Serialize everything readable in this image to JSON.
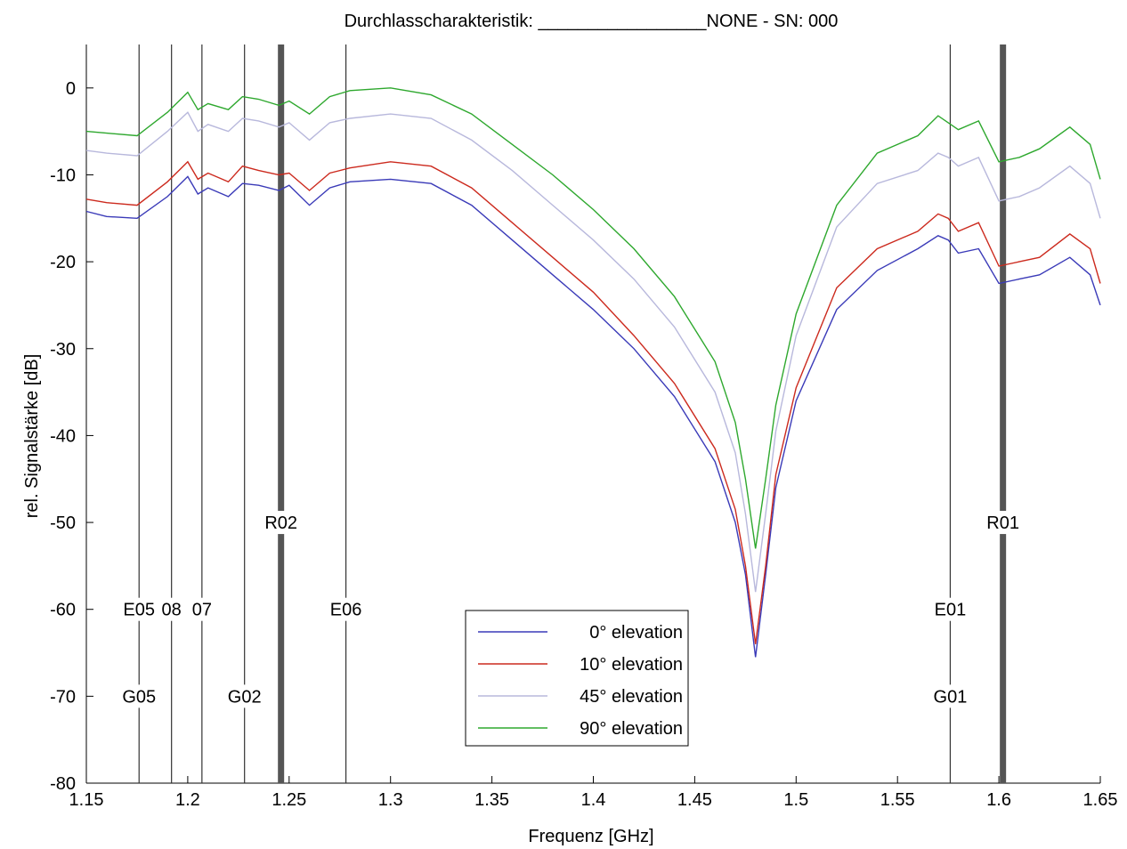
{
  "chart_data": {
    "type": "line",
    "title": "Durchlasscharakteristik: _________________NONE - SN: 000",
    "xlabel": "Frequenz [GHz]",
    "ylabel": "rel. Signalstärke [dB]",
    "xlim": [
      1.15,
      1.65
    ],
    "ylim": [
      -80,
      5
    ],
    "xticks": [
      "1.15",
      "1.2",
      "1.25",
      "1.3",
      "1.35",
      "1.4",
      "1.45",
      "1.5",
      "1.55",
      "1.6",
      "1.65"
    ],
    "yticks": [
      "0",
      "-10",
      "-20",
      "-30",
      "-40",
      "-50",
      "-60",
      "-70",
      "-80"
    ],
    "grid": false,
    "legend_position": "bottom-center",
    "series": [
      {
        "name": "0° elevation",
        "color": "#3a3ab8",
        "x": [
          1.15,
          1.16,
          1.175,
          1.19,
          1.2,
          1.205,
          1.21,
          1.22,
          1.227,
          1.235,
          1.245,
          1.25,
          1.26,
          1.27,
          1.28,
          1.3,
          1.32,
          1.34,
          1.36,
          1.38,
          1.4,
          1.42,
          1.44,
          1.46,
          1.47,
          1.475,
          1.48,
          1.485,
          1.49,
          1.5,
          1.52,
          1.54,
          1.56,
          1.57,
          1.575,
          1.58,
          1.59,
          1.6,
          1.61,
          1.62,
          1.635,
          1.645,
          1.65
        ],
        "values": [
          -14.2,
          -14.8,
          -15.0,
          -12.5,
          -10.2,
          -12.2,
          -11.5,
          -12.5,
          -11.0,
          -11.2,
          -11.8,
          -11.2,
          -13.5,
          -11.5,
          -10.8,
          -10.5,
          -11.0,
          -13.5,
          -17.5,
          -21.5,
          -25.5,
          -30.0,
          -35.5,
          -43.0,
          -50.0,
          -56.0,
          -65.5,
          -56.0,
          -46.0,
          -36.0,
          -25.5,
          -21.0,
          -18.5,
          -17.0,
          -17.5,
          -19.0,
          -18.5,
          -22.5,
          -22.0,
          -21.5,
          -19.5,
          -21.5,
          -25.0
        ]
      },
      {
        "name": "10° elevation",
        "color": "#cc2a1e",
        "x": [
          1.15,
          1.16,
          1.175,
          1.19,
          1.2,
          1.205,
          1.21,
          1.22,
          1.227,
          1.235,
          1.245,
          1.25,
          1.26,
          1.27,
          1.28,
          1.3,
          1.32,
          1.34,
          1.36,
          1.38,
          1.4,
          1.42,
          1.44,
          1.46,
          1.47,
          1.475,
          1.48,
          1.485,
          1.49,
          1.5,
          1.52,
          1.54,
          1.56,
          1.57,
          1.575,
          1.58,
          1.59,
          1.6,
          1.61,
          1.62,
          1.635,
          1.645,
          1.65
        ],
        "values": [
          -12.8,
          -13.2,
          -13.5,
          -10.8,
          -8.5,
          -10.5,
          -9.8,
          -10.8,
          -9.0,
          -9.5,
          -10.0,
          -9.8,
          -11.8,
          -9.8,
          -9.2,
          -8.5,
          -9.0,
          -11.5,
          -15.5,
          -19.5,
          -23.5,
          -28.5,
          -34.0,
          -41.5,
          -48.5,
          -55.0,
          -64.0,
          -55.0,
          -44.5,
          -34.5,
          -23.0,
          -18.5,
          -16.5,
          -14.5,
          -15.0,
          -16.5,
          -15.5,
          -20.5,
          -20.0,
          -19.5,
          -16.8,
          -18.5,
          -22.5
        ]
      },
      {
        "name": "45° elevation",
        "color": "#b8b8dc",
        "x": [
          1.15,
          1.16,
          1.175,
          1.19,
          1.2,
          1.205,
          1.21,
          1.22,
          1.227,
          1.235,
          1.245,
          1.25,
          1.26,
          1.27,
          1.28,
          1.3,
          1.32,
          1.34,
          1.36,
          1.38,
          1.4,
          1.42,
          1.44,
          1.46,
          1.47,
          1.475,
          1.48,
          1.485,
          1.49,
          1.5,
          1.52,
          1.54,
          1.56,
          1.57,
          1.575,
          1.58,
          1.59,
          1.6,
          1.61,
          1.62,
          1.635,
          1.645,
          1.65
        ],
        "values": [
          -7.2,
          -7.5,
          -7.8,
          -5.0,
          -2.8,
          -5.0,
          -4.2,
          -5.0,
          -3.5,
          -3.8,
          -4.5,
          -4.0,
          -6.0,
          -4.0,
          -3.5,
          -3.0,
          -3.5,
          -6.0,
          -9.5,
          -13.5,
          -17.5,
          -22.0,
          -27.5,
          -35.0,
          -42.0,
          -49.0,
          -58.0,
          -49.0,
          -39.5,
          -28.5,
          -16.0,
          -11.0,
          -9.5,
          -7.5,
          -8.0,
          -9.0,
          -8.0,
          -13.0,
          -12.5,
          -11.5,
          -9.0,
          -11.0,
          -15.0
        ]
      },
      {
        "name": "90° elevation",
        "color": "#2ea82e",
        "x": [
          1.15,
          1.16,
          1.175,
          1.19,
          1.2,
          1.205,
          1.21,
          1.22,
          1.227,
          1.235,
          1.245,
          1.25,
          1.26,
          1.27,
          1.28,
          1.3,
          1.32,
          1.34,
          1.36,
          1.38,
          1.4,
          1.42,
          1.44,
          1.46,
          1.47,
          1.475,
          1.48,
          1.485,
          1.49,
          1.5,
          1.52,
          1.54,
          1.56,
          1.57,
          1.575,
          1.58,
          1.59,
          1.6,
          1.61,
          1.62,
          1.635,
          1.645,
          1.65
        ],
        "values": [
          -5.0,
          -5.2,
          -5.5,
          -2.8,
          -0.5,
          -2.5,
          -1.8,
          -2.5,
          -1.0,
          -1.3,
          -2.0,
          -1.5,
          -3.0,
          -1.0,
          -0.3,
          0.0,
          -0.8,
          -3.0,
          -6.5,
          -10.0,
          -14.0,
          -18.5,
          -24.0,
          -31.5,
          -38.5,
          -45.0,
          -53.0,
          -45.0,
          -36.5,
          -26.0,
          -13.5,
          -7.5,
          -5.5,
          -3.2,
          -4.0,
          -4.8,
          -3.8,
          -8.5,
          -8.0,
          -7.0,
          -4.5,
          -6.5,
          -10.5
        ]
      }
    ],
    "markers": [
      {
        "x": 1.176,
        "label_top": "E05",
        "label_bottom": "G05",
        "thick": false
      },
      {
        "x": 1.192,
        "label_top": "08",
        "label_bottom": "",
        "thick": false
      },
      {
        "x": 1.207,
        "label_top": "07",
        "label_bottom": "",
        "thick": false
      },
      {
        "x": 1.228,
        "label_top": "",
        "label_bottom": "G02",
        "thick": false
      },
      {
        "x": 1.246,
        "label_top": "R02",
        "label_bottom": "",
        "thick": true,
        "label_level": -50
      },
      {
        "x": 1.278,
        "label_top": "E06",
        "label_bottom": "",
        "thick": false
      },
      {
        "x": 1.576,
        "label_top": "E01",
        "label_bottom": "G01",
        "thick": false
      },
      {
        "x": 1.602,
        "label_top": "R01",
        "label_bottom": "",
        "thick": true,
        "label_level": -50
      }
    ]
  }
}
